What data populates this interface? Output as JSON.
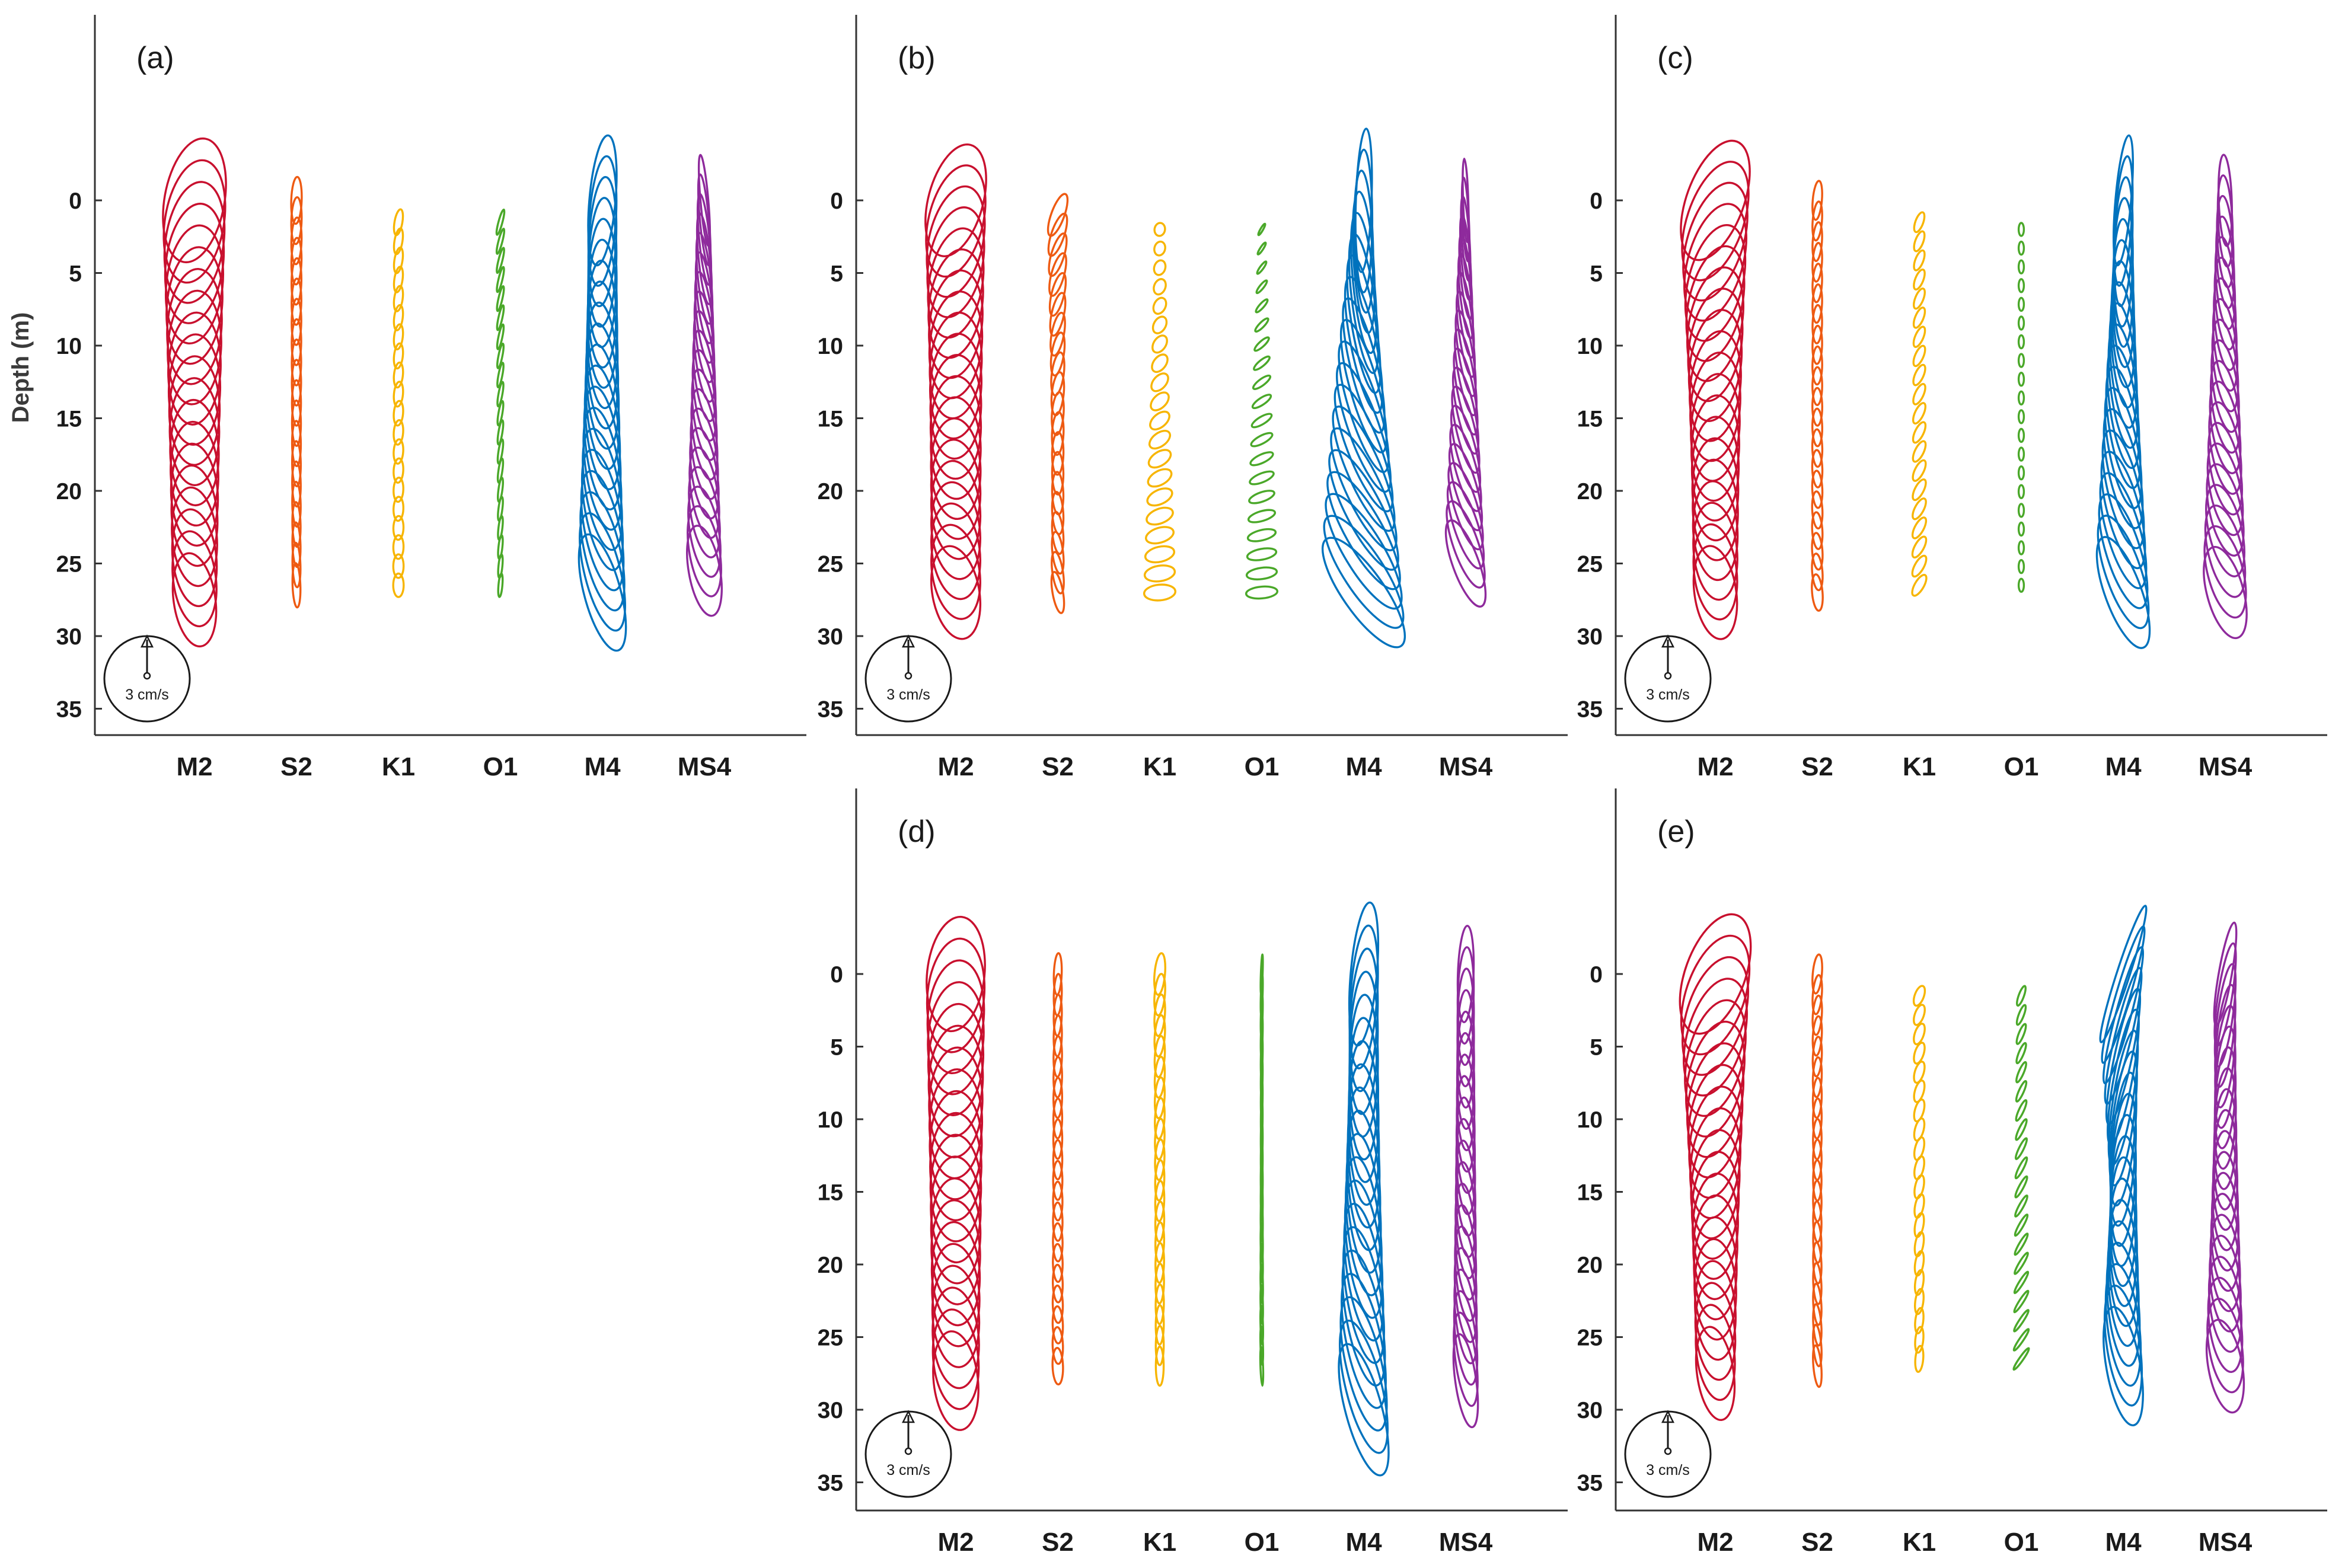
{
  "chart_data": {
    "type": "tidal-current-ellipse-profiles",
    "ylabel": "Depth (m)",
    "y_ticks": [
      0,
      5,
      10,
      15,
      20,
      25,
      30,
      35
    ],
    "categories": [
      "M2",
      "S2",
      "K1",
      "O1",
      "M4",
      "MS4"
    ],
    "colors": {
      "M2": "#c8102e",
      "S2": "#ee5a12",
      "K1": "#f7b500",
      "O1": "#4aa829",
      "M4": "#0072bd",
      "MS4": "#8e2a9c"
    },
    "scale_label": "3 cm/s",
    "panels": [
      {
        "tag": "(a)",
        "constituents": [
          {
            "name": "M2",
            "depths": [
              0,
              27.5
            ],
            "semi_major": [
              4.8,
              3.6
            ],
            "semi_minor": [
              2.3,
              1.6
            ],
            "tilt": [
              80,
              98
            ],
            "top": -5
          },
          {
            "name": "S2",
            "depths": [
              0,
              26.5
            ],
            "semi_major": [
              1.8,
              1.7
            ],
            "semi_minor": [
              0.4,
              0.3
            ],
            "tilt": [
              88,
              92
            ],
            "top": -0.3
          },
          {
            "name": "K1",
            "depths": [
              1.5,
              26.5
            ],
            "semi_major": [
              1.0,
              0.9
            ],
            "semi_minor": [
              0.3,
              0.4
            ],
            "tilt": [
              80,
              90
            ],
            "top": 1.2
          },
          {
            "name": "O1",
            "depths": [
              1.5,
              26.5
            ],
            "semi_major": [
              1.0,
              0.9
            ],
            "semi_minor": [
              0.15,
              0.15
            ],
            "tilt": [
              75,
              85
            ],
            "top": 1.2
          },
          {
            "name": "M4",
            "depths": [
              0,
              27.0
            ],
            "semi_major": [
              5.0,
              4.6
            ],
            "semi_minor": [
              1.0,
              1.4
            ],
            "tilt": [
              85,
              105
            ],
            "top": -6.5
          },
          {
            "name": "MS4",
            "depths": [
              0,
              25.5
            ],
            "semi_major": [
              3.5,
              3.5
            ],
            "semi_minor": [
              0.3,
              1.2
            ],
            "tilt": [
              95,
              100
            ],
            "top": -3.5
          }
        ]
      },
      {
        "tag": "(b)",
        "constituents": [
          {
            "name": "M2",
            "depths": [
              0,
              27.0
            ],
            "semi_major": [
              4.4,
              3.6
            ],
            "semi_minor": [
              2.1,
              1.8
            ],
            "tilt": [
              75,
              100
            ],
            "top": -4.2
          },
          {
            "name": "S2",
            "depths": [
              1,
              27.0
            ],
            "semi_major": [
              1.7,
              1.6
            ],
            "semi_minor": [
              0.5,
              0.4
            ],
            "tilt": [
              70,
              100
            ],
            "top": 0.3
          },
          {
            "name": "K1",
            "depths": [
              2,
              27
            ],
            "semi_major": [
              0.5,
              1.2
            ],
            "semi_minor": [
              0.4,
              0.6
            ],
            "tilt": [
              80,
              5
            ],
            "top": 1.8
          },
          {
            "name": "O1",
            "depths": [
              2,
              27
            ],
            "semi_major": [
              0.5,
              1.2
            ],
            "semi_minor": [
              0.1,
              0.45
            ],
            "tilt": [
              60,
              5
            ],
            "top": 1.8
          },
          {
            "name": "M4",
            "depths": [
              0,
              27.0
            ],
            "semi_major": [
              5.5,
              5.0
            ],
            "semi_minor": [
              0.6,
              1.6
            ],
            "tilt": [
              88,
              125
            ],
            "top": -7.0
          },
          {
            "name": "MS4",
            "depths": [
              0,
              25.0
            ],
            "semi_major": [
              3.2,
              3.5
            ],
            "semi_minor": [
              0.2,
              1.0
            ],
            "tilt": [
              92,
              110
            ],
            "top": -2.0
          }
        ]
      },
      {
        "tag": "(c)",
        "constituents": [
          {
            "name": "M2",
            "depths": [
              0,
              27.0
            ],
            "semi_major": [
              4.8,
              3.6
            ],
            "semi_minor": [
              2.2,
              1.6
            ],
            "tilt": [
              70,
              98
            ],
            "top": -5
          },
          {
            "name": "S2",
            "depths": [
              0,
              27.0
            ],
            "semi_major": [
              1.5,
              1.4
            ],
            "semi_minor": [
              0.35,
              0.4
            ],
            "tilt": [
              85,
              95
            ],
            "top": -0.2
          },
          {
            "name": "K1",
            "depths": [
              1.5,
              26.5
            ],
            "semi_major": [
              0.8,
              0.9
            ],
            "semi_minor": [
              0.3,
              0.35
            ],
            "tilt": [
              70,
              60
            ],
            "top": 1.2
          },
          {
            "name": "O1",
            "depths": [
              2,
              26.5
            ],
            "semi_major": [
              0.5,
              0.5
            ],
            "semi_minor": [
              0.2,
              0.2
            ],
            "tilt": [
              90,
              90
            ],
            "top": 1.8
          },
          {
            "name": "M4",
            "depths": [
              0,
              27.0
            ],
            "semi_major": [
              5.0,
              4.5
            ],
            "semi_minor": [
              0.6,
              1.4
            ],
            "tilt": [
              85,
              110
            ],
            "top": -5.5
          },
          {
            "name": "MS4",
            "depths": [
              0,
              27.0
            ],
            "semi_major": [
              3.5,
              3.6
            ],
            "semi_minor": [
              0.5,
              1.4
            ],
            "tilt": [
              92,
              105
            ],
            "top": -3.5
          }
        ]
      },
      {
        "tag": "(d)",
        "constituents": [
          {
            "name": "M2",
            "depths": [
              0,
              28.0
            ],
            "semi_major": [
              4.4,
              3.8
            ],
            "semi_minor": [
              2.2,
              1.7
            ],
            "tilt": [
              84,
              96
            ],
            "top": -5.5
          },
          {
            "name": "S2",
            "depths": [
              0,
              27.0
            ],
            "semi_major": [
              1.6,
              1.4
            ],
            "semi_minor": [
              0.3,
              0.4
            ],
            "tilt": [
              88,
              92
            ],
            "top": -1.0
          },
          {
            "name": "K1",
            "depths": [
              0,
              27.0
            ],
            "semi_major": [
              1.6,
              1.5
            ],
            "semi_minor": [
              0.4,
              0.3
            ],
            "tilt": [
              85,
              90
            ],
            "top": -0.2
          },
          {
            "name": "O1",
            "depths": [
              0,
              27.0
            ],
            "semi_major": [
              1.5,
              1.5
            ],
            "semi_minor": [
              0.05,
              0.1
            ],
            "tilt": [
              88,
              92
            ],
            "top": -0.2
          },
          {
            "name": "M4",
            "depths": [
              0,
              30.0
            ],
            "semi_major": [
              5.5,
              5.2
            ],
            "semi_minor": [
              1.0,
              1.4
            ],
            "tilt": [
              85,
              105
            ],
            "top": -8.2
          },
          {
            "name": "MS4",
            "depths": [
              0,
              28.0
            ],
            "semi_major": [
              3.7,
              3.6
            ],
            "semi_minor": [
              0.6,
              0.8
            ],
            "tilt": [
              88,
              98
            ],
            "top": -3.5
          }
        ]
      },
      {
        "tag": "(e)",
        "constituents": [
          {
            "name": "M2",
            "depths": [
              0,
              27.5
            ],
            "semi_major": [
              4.8,
              3.6
            ],
            "semi_minor": [
              2.3,
              1.4
            ],
            "tilt": [
              70,
              98
            ],
            "top": -5.2
          },
          {
            "name": "S2",
            "depths": [
              0,
              27.0
            ],
            "semi_major": [
              1.5,
              1.6
            ],
            "semi_minor": [
              0.35,
              0.3
            ],
            "tilt": [
              85,
              95
            ],
            "top": -0.3
          },
          {
            "name": "K1",
            "depths": [
              1.5,
              26.5
            ],
            "semi_major": [
              0.8,
              1.0
            ],
            "semi_minor": [
              0.35,
              0.3
            ],
            "tilt": [
              70,
              85
            ],
            "top": 1.2
          },
          {
            "name": "O1",
            "depths": [
              1.5,
              26.5
            ],
            "semi_major": [
              0.8,
              1.0
            ],
            "semi_minor": [
              0.2,
              0.15
            ],
            "tilt": [
              70,
              55
            ],
            "top": 1.2
          },
          {
            "name": "M4",
            "depths": [
              0,
              27.0
            ],
            "semi_major": [
              5.5,
              4.6
            ],
            "semi_minor": [
              0.5,
              1.3
            ],
            "tilt": [
              72,
              100
            ],
            "top": -6.2
          },
          {
            "name": "MS4",
            "depths": [
              0,
              27.0
            ],
            "semi_major": [
              4.0,
              3.6
            ],
            "semi_minor": [
              0.5,
              1.3
            ],
            "tilt": [
              80,
              100
            ],
            "top": -5.0
          }
        ]
      }
    ]
  }
}
